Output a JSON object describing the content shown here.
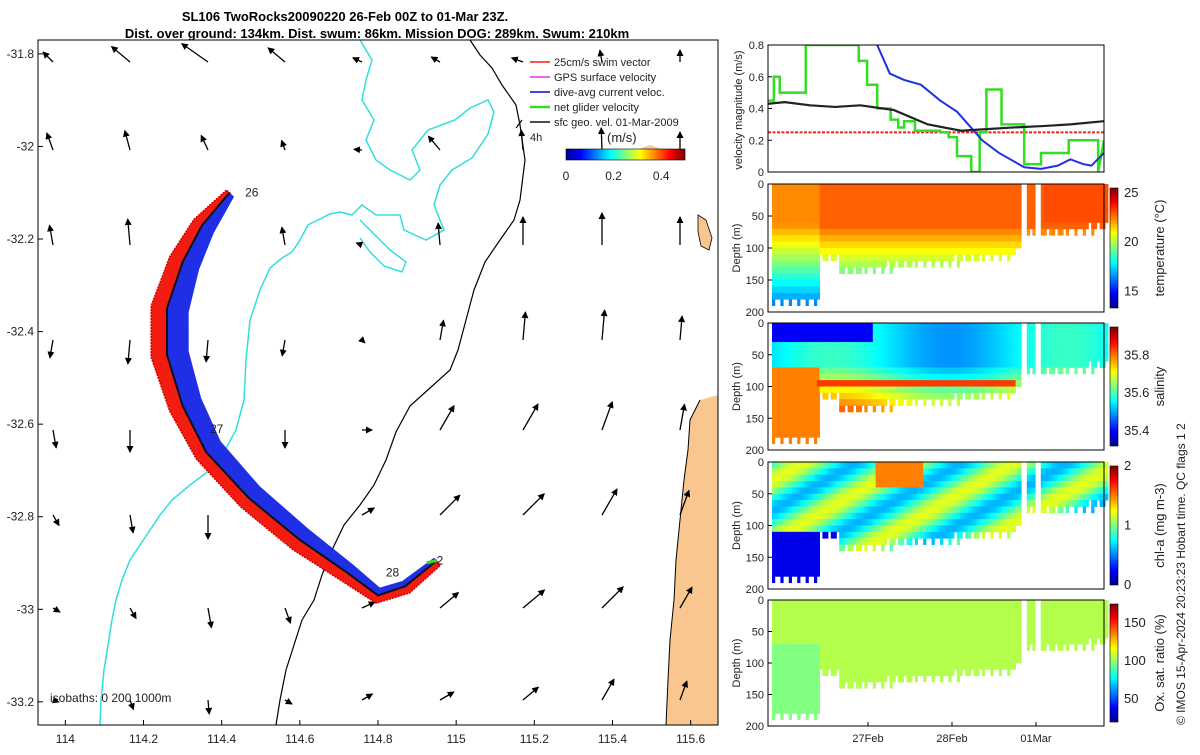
{
  "title": {
    "line1": "SL106 TwoRocks20090220 26-Feb 00Z to 01-Mar 23Z.",
    "line2": "Dist. over ground: 134km. Dist. swum: 86km. Mission DOG: 289km. Swum: 210km"
  },
  "chart_data": [
    {
      "type": "scatter",
      "name": "map",
      "xticks": [
        "114",
        "114.2",
        "114.4",
        "114.6",
        "114.8",
        "115",
        "115.2",
        "115.4",
        "115.6"
      ],
      "xticks_num": [
        114,
        114.2,
        114.4,
        114.6,
        114.8,
        115,
        115.2,
        115.4,
        115.6
      ],
      "yticks": [
        "-31.8",
        "-32",
        "-32.2",
        "-32.4",
        "-32.6",
        "-32.8",
        "-33",
        "-33.2"
      ],
      "yticks_num": [
        -31.8,
        -32,
        -32.2,
        -32.4,
        -32.6,
        -32.8,
        -33,
        -33.2
      ],
      "xlim": [
        113.93,
        115.67
      ],
      "ylim": [
        -33.25,
        -31.77
      ],
      "legend": [
        {
          "label": "25cm/s swim vector",
          "color": "#e8251f"
        },
        {
          "label": "GPS surface velocity",
          "color": "#e534e5"
        },
        {
          "label": "dive-avg current veloc.",
          "color": "#1f2fe6"
        },
        {
          "label": "net glider velocity",
          "color": "#33dd22"
        },
        {
          "label": "sfc geo. vel. 01-Mar-2009",
          "color": "#111111"
        }
      ],
      "day_labels": [
        {
          "text": "26",
          "lon": 114.46,
          "lat": -32.1
        },
        {
          "text": "27",
          "lon": 114.37,
          "lat": -32.61
        },
        {
          "text": "28",
          "lon": 114.82,
          "lat": -32.92
        },
        {
          "text": "2",
          "lon": 114.95,
          "lat": -32.895
        }
      ],
      "track": [
        [
          114.42,
          -32.1
        ],
        [
          114.35,
          -32.17
        ],
        [
          114.3,
          -32.25
        ],
        [
          114.26,
          -32.35
        ],
        [
          114.26,
          -32.45
        ],
        [
          114.3,
          -32.56
        ],
        [
          114.36,
          -32.66
        ],
        [
          114.47,
          -32.76
        ],
        [
          114.6,
          -32.85
        ],
        [
          114.72,
          -32.92
        ],
        [
          114.8,
          -32.97
        ],
        [
          114.87,
          -32.95
        ],
        [
          114.95,
          -32.895
        ]
      ],
      "velocity_label": "4h",
      "colorbar_title": "(m/s)",
      "colorbar_ticks": [
        "0",
        "0.2",
        "0.4"
      ],
      "colorbar_range": [
        0,
        0.5
      ],
      "isobaths_label": "isobaths: 0   200  1000m"
    },
    {
      "type": "line",
      "name": "velocity magnitude",
      "ylabel": "velocity magnitude (m/s)",
      "ylim": [
        0,
        0.8
      ],
      "yticks": [
        "0",
        "0.2",
        "0.4",
        "0.6",
        "0.8"
      ],
      "yticks_num": [
        0,
        0.2,
        0.4,
        0.6,
        0.8
      ],
      "xlim": [
        0,
        4
      ],
      "series": [
        {
          "name": "swim",
          "color": "#e8251f",
          "x": [
            0,
            4
          ],
          "y": [
            0.25,
            0.25
          ]
        },
        {
          "name": "net glider",
          "color": "#33dd22",
          "x": [
            0,
            0.07,
            0.07,
            0.14,
            0.14,
            0.45,
            0.45,
            0.62,
            0.62,
            1.08,
            1.08,
            1.18,
            1.18,
            1.3,
            1.3,
            1.46,
            1.46,
            1.55,
            1.55,
            1.62,
            1.62,
            1.75,
            1.75,
            2.05,
            2.05,
            2.15,
            2.15,
            2.25,
            2.25,
            2.42,
            2.42,
            2.52,
            2.52,
            2.6,
            2.6,
            2.78,
            2.78,
            3.05,
            3.05,
            3.25,
            3.25,
            3.58,
            3.58,
            3.93,
            3.93,
            4.0
          ],
          "y": [
            0.45,
            0.45,
            0.6,
            0.6,
            0.5,
            0.5,
            0.8,
            0.8,
            0.8,
            0.8,
            0.7,
            0.7,
            0.55,
            0.55,
            0.4,
            0.4,
            0.33,
            0.33,
            0.28,
            0.28,
            0.32,
            0.32,
            0.26,
            0.26,
            0.25,
            0.25,
            0.22,
            0.22,
            0.1,
            0.1,
            0.0,
            0.0,
            0.25,
            0.25,
            0.52,
            0.52,
            0.3,
            0.3,
            0.05,
            0.05,
            0.12,
            0.12,
            0.2,
            0.2,
            0.0,
            0.2
          ]
        },
        {
          "name": "current",
          "color": "#1f2fe6",
          "x": [
            0,
            0.45,
            0.95,
            1.2,
            1.3,
            1.45,
            1.62,
            1.82,
            2.05,
            2.25,
            2.55,
            2.75,
            3.05,
            3.25,
            3.45,
            3.6,
            3.75,
            3.85,
            4.0
          ],
          "y": [
            0.9,
            0.82,
            0.82,
            0.85,
            0.8,
            0.62,
            0.58,
            0.55,
            0.45,
            0.38,
            0.2,
            0.12,
            0.03,
            0.02,
            0.04,
            0.08,
            0.05,
            0.04,
            0.12
          ]
        },
        {
          "name": "sfc geo",
          "color": "#222222",
          "x": [
            0,
            0.2,
            0.5,
            0.8,
            1.1,
            1.5,
            1.9,
            2.3,
            2.6,
            2.9,
            3.3,
            3.6,
            4.0
          ],
          "y": [
            0.43,
            0.44,
            0.42,
            0.41,
            0.42,
            0.39,
            0.3,
            0.26,
            0.27,
            0.28,
            0.29,
            0.3,
            0.32
          ]
        }
      ]
    },
    {
      "type": "heatmap",
      "name": "temperature",
      "ylabel": "Depth (m)",
      "yticks": [
        "0",
        "50",
        "100",
        "150",
        "200"
      ],
      "yticks_num": [
        0,
        50,
        100,
        150,
        200
      ],
      "colorbar_label": "temperature (°C)",
      "colorbar_ticks": [
        "15",
        "20",
        "25"
      ],
      "colorbar_ticks_num": [
        15,
        20,
        25
      ],
      "colorbar_range": [
        13.3,
        25.5
      ]
    },
    {
      "type": "heatmap",
      "name": "salinity",
      "ylabel": "Depth (m)",
      "yticks": [
        "0",
        "50",
        "100",
        "150",
        "200"
      ],
      "yticks_num": [
        0,
        50,
        100,
        150,
        200
      ],
      "colorbar_label": "salinity",
      "colorbar_ticks": [
        "35.4",
        "35.6",
        "35.8"
      ],
      "colorbar_ticks_num": [
        35.4,
        35.6,
        35.8
      ],
      "colorbar_range": [
        35.32,
        35.95
      ]
    },
    {
      "type": "heatmap",
      "name": "chlorophyll",
      "ylabel": "Depth (m)",
      "yticks": [
        "0",
        "50",
        "100",
        "150",
        "200"
      ],
      "yticks_num": [
        0,
        50,
        100,
        150,
        200
      ],
      "colorbar_label": "chl-a (mg m-3)",
      "colorbar_ticks": [
        "0",
        "1",
        "2"
      ],
      "colorbar_ticks_num": [
        0,
        1,
        2
      ],
      "colorbar_range": [
        0,
        2
      ]
    },
    {
      "type": "heatmap",
      "name": "oxygen",
      "ylabel": "Depth (m)",
      "yticks": [
        "0",
        "50",
        "100",
        "150",
        "200"
      ],
      "yticks_num": [
        0,
        50,
        100,
        150,
        200
      ],
      "colorbar_label": "Ox. sat. ratio (%)",
      "colorbar_ticks": [
        "50",
        "100",
        "150"
      ],
      "colorbar_ticks_num": [
        50,
        100,
        150
      ],
      "colorbar_range": [
        20,
        175
      ],
      "xticks": [
        "27Feb",
        "28Feb",
        "01Mar"
      ],
      "xticks_num": [
        1,
        2,
        3
      ]
    }
  ],
  "side_note": "© IMOS 15-Apr-2024 20:23:23 Hobart time. QC flags 1  2"
}
